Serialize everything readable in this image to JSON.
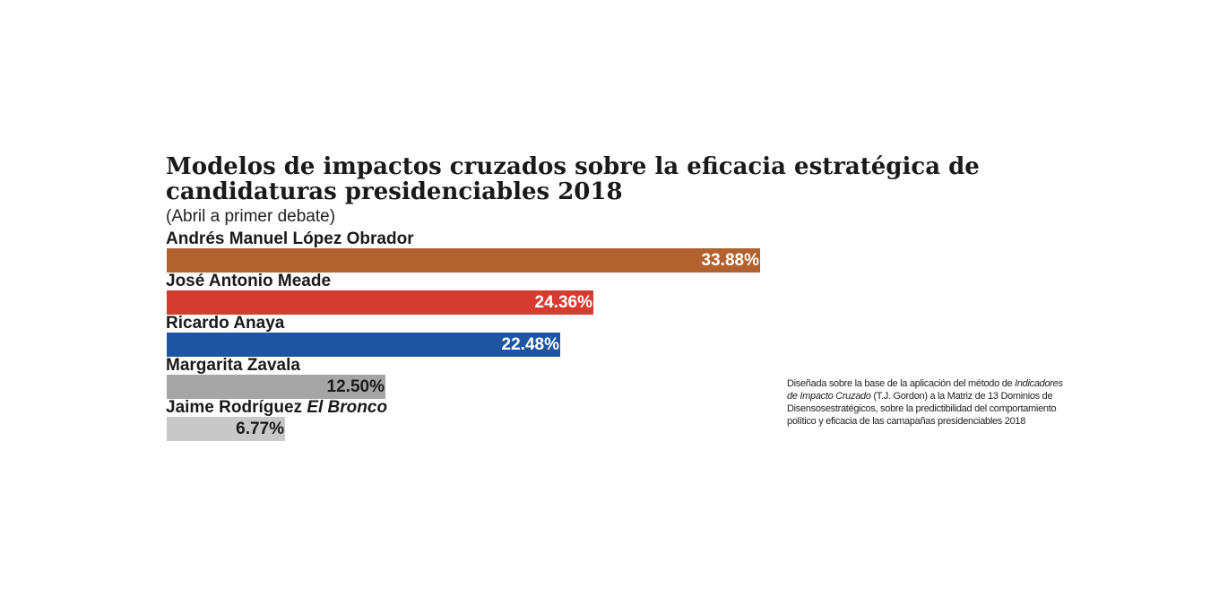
{
  "chart_data": {
    "type": "bar",
    "orientation": "horizontal",
    "title": "Modelos de impactos cruzados sobre la eficacia estratégica de candidaturas presidenciables 2018",
    "subtitle": "(Abril a primer debate)",
    "xlim": [
      0,
      33.88
    ],
    "unit": "%",
    "bars": [
      {
        "name": "Andrés Manuel López Obrador",
        "nickname": "",
        "value": 33.88,
        "label": "33.88%",
        "color": "#b2622f",
        "label_color": "#ffffff"
      },
      {
        "name": "José Antonio Meade",
        "nickname": "",
        "value": 24.36,
        "label": "24.36%",
        "color": "#d63b2f",
        "label_color": "#ffffff"
      },
      {
        "name": "Ricardo Anaya",
        "nickname": "",
        "value": 22.48,
        "label": "22.48%",
        "color": "#1f55a0",
        "label_color": "#ffffff"
      },
      {
        "name": "Margarita Zavala",
        "nickname": "",
        "value": 12.5,
        "label": "12.50%",
        "color": "#a5a5a5",
        "label_color": "#1a1a1a"
      },
      {
        "name": "Jaime Rodríguez",
        "nickname": "El Bronco",
        "value": 6.77,
        "label": "6.77%",
        "color": "#c8c8c8",
        "label_color": "#1a1a1a"
      }
    ]
  },
  "note": {
    "part1": "Diseñada sobre la base de la aplicación del método de",
    "italic": "Indicadores de Impacto Cruzado",
    "part2": "(T.J. Gordon) a la Matriz de 13 Dominios de Disensosestratégicos, sobre la predictibilidad del comportamiento político y eficacia de las camapañas presidenciables 2018"
  }
}
